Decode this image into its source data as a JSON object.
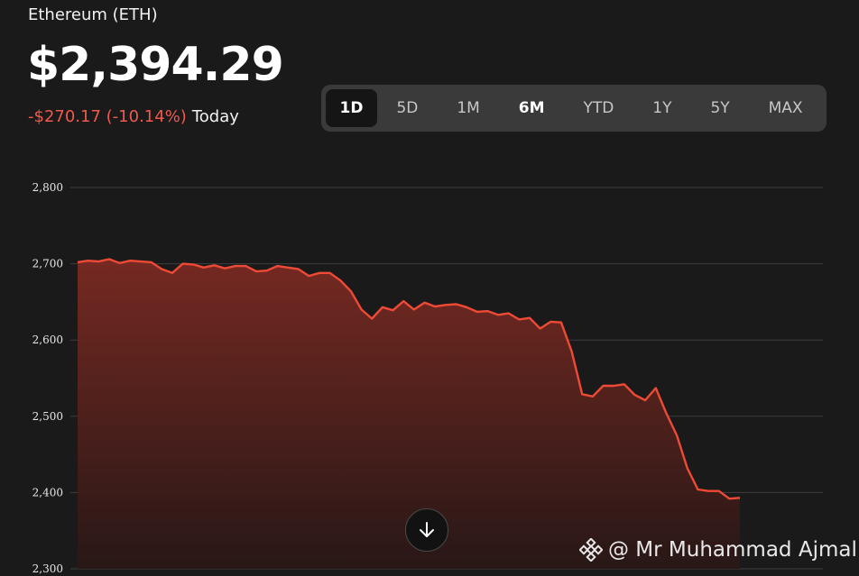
{
  "header": {
    "asset_name": "Ethereum (ETH)",
    "price": "$2,394.29",
    "change": "-$270.17 (-10.14%)",
    "period": "Today"
  },
  "ranges": [
    "1D",
    "5D",
    "1M",
    "6M",
    "YTD",
    "1Y",
    "5Y",
    "MAX"
  ],
  "selected_range": "1D",
  "scroll_down_icon": "arrow-down-icon",
  "watermark": {
    "icon": "binance-logo-icon",
    "text": "@ Mr Muhammad Ajmal"
  },
  "colors": {
    "background": "#1a1a1a",
    "line": "#ef4a36",
    "negative_change": "#ef5a4c",
    "gridline": "#3d3d3d"
  },
  "chart_data": {
    "type": "area",
    "title": "",
    "xlabel": "",
    "ylabel": "",
    "ylim": [
      2300,
      2800
    ],
    "grid": true,
    "yticks": [
      2800,
      2700,
      2600,
      2500,
      2400,
      2300
    ],
    "ytick_labels": [
      "2,800",
      "2,700",
      "2,600",
      "2,500",
      "2,400",
      "2,300"
    ],
    "series": [
      {
        "values": [
          2702,
          2704,
          2703,
          2706,
          2701,
          2704,
          2703,
          2702,
          2693,
          2688,
          2700,
          2699,
          2695,
          2698,
          2694,
          2697,
          2697,
          2690,
          2691,
          2697,
          2695,
          2693,
          2684,
          2688,
          2688,
          2678,
          2664,
          2640,
          2628,
          2643,
          2639,
          2651,
          2640,
          2649,
          2644,
          2646,
          2647,
          2643,
          2637,
          2638,
          2633,
          2635,
          2627,
          2629,
          2615,
          2624,
          2623,
          2585,
          2529,
          2526,
          2540,
          2540,
          2542,
          2528,
          2521,
          2537,
          2504,
          2475,
          2432,
          2404,
          2402,
          2402,
          2392,
          2393
        ],
        "color": "#ef4a36"
      }
    ]
  }
}
